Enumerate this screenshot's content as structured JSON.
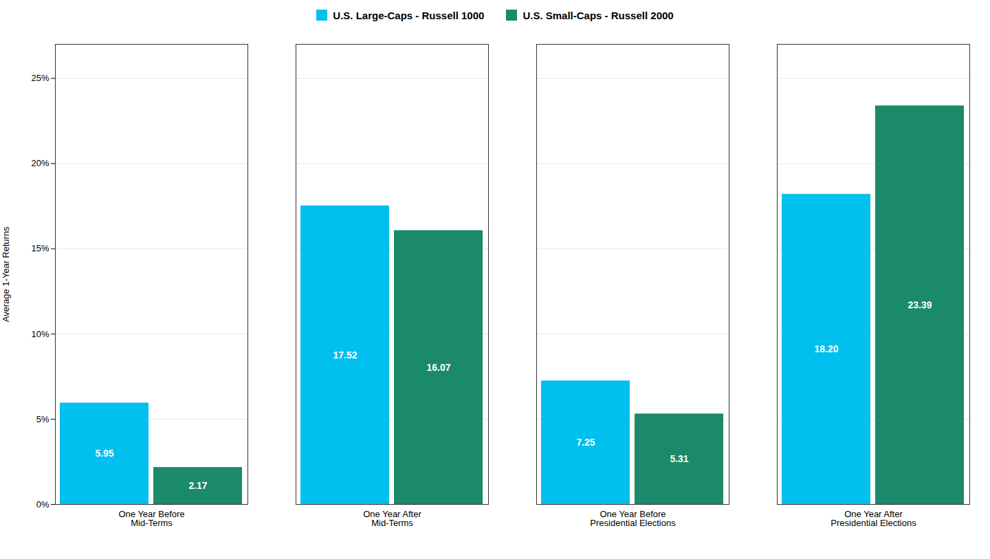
{
  "chart_data": {
    "type": "bar",
    "categories": [
      "One Year Before\nMid-Terms",
      "One Year After\nMid-Terms",
      "One Year Before\nPresidential Elections",
      "One Year After\nPresidential Elections"
    ],
    "series": [
      {
        "name": "U.S. Large-Caps - Russell 1000",
        "color": "#00C0F0",
        "values": [
          5.95,
          17.52,
          7.25,
          18.2
        ],
        "value_labels": [
          "5.95",
          "17.52",
          "7.25",
          "18.20"
        ]
      },
      {
        "name": "U.S. Small-Caps - Russell 2000",
        "color": "#1A8A6A",
        "values": [
          2.17,
          16.07,
          5.31,
          23.39
        ],
        "value_labels": [
          "2.17",
          "16.07",
          "5.31",
          "23.39"
        ]
      }
    ],
    "ylabel": "Average 1-Year Returns",
    "ylim": [
      0,
      27
    ],
    "yticks": [
      {
        "value": 0,
        "label": "0%"
      },
      {
        "value": 5,
        "label": "5%"
      },
      {
        "value": 10,
        "label": "10%"
      },
      {
        "value": 15,
        "label": "15%"
      },
      {
        "value": 20,
        "label": "20%"
      },
      {
        "value": 25,
        "label": "25%"
      }
    ],
    "grid": true,
    "legend": "top",
    "data_labels": true
  }
}
